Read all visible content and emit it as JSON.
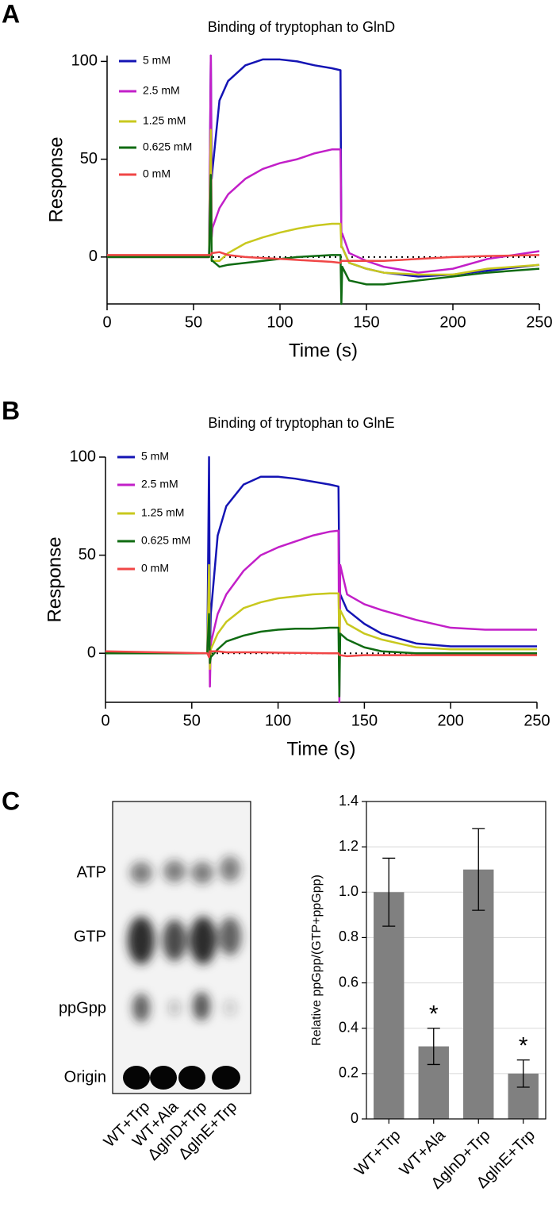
{
  "panel_labels": [
    "A",
    "B",
    "C"
  ],
  "gel": {
    "bands": [
      "ATP",
      "GTP",
      "ppGpp",
      "Origin"
    ],
    "lanes": [
      "WT+Trp",
      "WT+Ala",
      "ΔglnD+Trp",
      "ΔglnE+Trp"
    ]
  },
  "chart_data": [
    {
      "type": "line",
      "title": "Binding of tryptophan to GlnD",
      "xlabel": "Time (s)",
      "ylabel": "Response",
      "x": [
        0,
        59,
        60,
        60.5,
        61,
        65,
        70,
        80,
        90,
        100,
        110,
        120,
        130,
        135,
        135.5,
        136,
        140,
        150,
        160,
        180,
        200,
        220,
        250
      ],
      "series": [
        {
          "name": "5 mM",
          "color": "#1414b4",
          "values": [
            0,
            0,
            103,
            40,
            45,
            80,
            90,
            98,
            101,
            101,
            100,
            98,
            96.5,
            95.5,
            5,
            5,
            -3,
            -6,
            -8,
            -10,
            -9,
            -7,
            -4
          ]
        },
        {
          "name": "2.5 mM",
          "color": "#c21fc8",
          "values": [
            0,
            0,
            103,
            10,
            15,
            25,
            32,
            40,
            45,
            48,
            50,
            53,
            55,
            55,
            12,
            12,
            2,
            -2,
            -5,
            -8,
            -6,
            -1,
            3
          ]
        },
        {
          "name": "1.25 mM",
          "color": "#c8c81e",
          "values": [
            0,
            0,
            65,
            -2,
            -2,
            -2,
            2,
            7,
            10,
            12.5,
            14.5,
            16,
            17,
            17,
            5,
            5,
            -3,
            -6,
            -8,
            -9,
            -9,
            -6,
            -4
          ]
        },
        {
          "name": "0.625 mM",
          "color": "#0f6b12",
          "values": [
            0,
            0,
            42,
            -2,
            -2,
            -5,
            -4,
            -3,
            -2,
            -1,
            0,
            0.5,
            1,
            1,
            -24,
            -5,
            -12,
            -14,
            -14,
            -12,
            -10,
            -8,
            -6
          ]
        },
        {
          "name": "0 mM",
          "color": "#f04646",
          "values": [
            1,
            1,
            1,
            2,
            2,
            2.5,
            1,
            0,
            -0.5,
            -1,
            -1.5,
            -2,
            -2.5,
            -3,
            -2,
            -2,
            -2,
            -2,
            -2,
            -1,
            0,
            0.5,
            1
          ]
        }
      ],
      "xlim": [
        0,
        250
      ],
      "xticks": [
        0,
        50,
        100,
        150,
        200,
        250
      ],
      "ylim": [
        -24,
        103
      ],
      "yticks": [
        0,
        50,
        100
      ],
      "reference_line": 0,
      "legend": "upper left",
      "panel": "A"
    },
    {
      "type": "line",
      "title": "Binding of tryptophan to GlnE",
      "xlabel": "Time (s)",
      "ylabel": "Response",
      "x": [
        0,
        59,
        60,
        60.5,
        61,
        65,
        70,
        80,
        90,
        100,
        110,
        120,
        130,
        135,
        135.5,
        136,
        140,
        150,
        160,
        180,
        200,
        220,
        250
      ],
      "series": [
        {
          "name": "5 mM",
          "color": "#1414b4",
          "values": [
            0,
            0,
            100,
            0,
            20,
            60,
            75,
            86,
            90,
            90,
            89,
            87.5,
            86,
            85,
            38,
            30,
            22,
            15,
            10,
            5,
            3.5,
            3.5,
            3.5
          ]
        },
        {
          "name": "2.5 mM",
          "color": "#c21fc8",
          "values": [
            0,
            0,
            40,
            -17,
            5,
            20,
            30,
            42,
            50,
            54,
            57,
            60,
            62,
            62.5,
            -25,
            45,
            30,
            25,
            22,
            17,
            13,
            12,
            12
          ]
        },
        {
          "name": "1.25 mM",
          "color": "#c8c81e",
          "values": [
            0,
            0,
            45,
            -8,
            2,
            10,
            16,
            23,
            26,
            28,
            29,
            30,
            30.5,
            30.5,
            5,
            22,
            15,
            10,
            7,
            3,
            2,
            2,
            2
          ]
        },
        {
          "name": "0.625 mM",
          "color": "#0f6b12",
          "values": [
            0,
            0,
            20,
            -5,
            -2,
            2,
            6,
            9,
            11,
            12,
            12.5,
            12.5,
            13,
            13,
            -22,
            10,
            7,
            3,
            1,
            0,
            0,
            0,
            0
          ]
        },
        {
          "name": "0 mM",
          "color": "#f04646",
          "values": [
            1,
            0,
            -2,
            1,
            1,
            1,
            0.5,
            0.5,
            0.5,
            0.3,
            0.2,
            0.1,
            0,
            0,
            -1,
            -1,
            -1.5,
            -1,
            -1,
            -1,
            -1,
            -1,
            -1
          ]
        }
      ],
      "xlim": [
        0,
        250
      ],
      "xticks": [
        0,
        50,
        100,
        150,
        200,
        250
      ],
      "ylim": [
        -25,
        100
      ],
      "yticks": [
        0,
        50,
        100
      ],
      "reference_line": 0,
      "legend": "upper left",
      "panel": "B"
    },
    {
      "type": "bar",
      "ylabel": "Relative ppGpp/(GTP+ppGpp)",
      "categories": [
        "WT+Trp",
        "WT+Ala",
        "ΔglnD+Trp",
        "ΔglnE+Trp"
      ],
      "values": [
        1.0,
        0.32,
        1.1,
        0.2
      ],
      "errors": [
        0.15,
        0.08,
        0.18,
        0.06
      ],
      "annotations": [
        null,
        "*",
        null,
        "*"
      ],
      "color": "#808080",
      "ylim": [
        0,
        1.4
      ],
      "yticks": [
        0,
        0.2,
        0.4,
        0.6,
        0.8,
        {
          "value": 1,
          "label": "1.0"
        },
        1.2,
        1.4
      ],
      "grid": true,
      "panel": "C"
    }
  ]
}
